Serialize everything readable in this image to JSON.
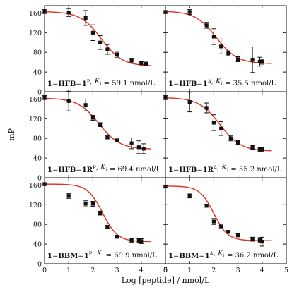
{
  "chart_data": {
    "type": "scatter",
    "xlabel": "Log [peptide] / nmol/L",
    "ylabel": "mP",
    "xlim": [
      0,
      5
    ],
    "ylim": [
      0,
      175
    ],
    "x_ticks": [
      "0",
      "1",
      "2",
      "3",
      "4",
      "5"
    ],
    "y_ticks": [
      "0",
      "40",
      "80",
      "120",
      "160"
    ],
    "layout": "3 rows x 2 columns, shared axes",
    "fit_color": "#e0301e",
    "point_color": "#111111",
    "panels": [
      {
        "annotation": {
          "prefix": "1=HFB=",
          "bold": "1",
          "sup": "P",
          "ki_label": "K",
          "ki_sub": "i",
          "value": " = 59.1 nmol/L"
        },
        "fit": {
          "top": 163,
          "bottom": 52,
          "ec50": 2.35,
          "slope": 1.0
        },
        "points": [
          {
            "x": 0.0,
            "y": 163,
            "err": 4
          },
          {
            "x": 1.0,
            "y": 161,
            "err": 8
          },
          {
            "x": 1.7,
            "y": 150,
            "err": 15
          },
          {
            "x": 2.0,
            "y": 120,
            "err": 16
          },
          {
            "x": 2.3,
            "y": 100,
            "err": 14
          },
          {
            "x": 2.6,
            "y": 86,
            "err": 10
          },
          {
            "x": 3.0,
            "y": 76,
            "err": 6
          },
          {
            "x": 3.6,
            "y": 63,
            "err": 5
          },
          {
            "x": 4.0,
            "y": 58,
            "err": 3
          },
          {
            "x": 4.2,
            "y": 57,
            "err": 3
          }
        ]
      },
      {
        "annotation": {
          "prefix": "1=HFB=",
          "bold": "1",
          "sup": "A",
          "ki_label": "K",
          "ki_sub": "i",
          "value": " = 35.5 nmol/L"
        },
        "fit": {
          "top": 164,
          "bottom": 57,
          "ec50": 2.1,
          "slope": 1.0
        },
        "points": [
          {
            "x": 0.0,
            "y": 162,
            "err": 3
          },
          {
            "x": 1.0,
            "y": 162,
            "err": 5
          },
          {
            "x": 1.7,
            "y": 135,
            "err": 6
          },
          {
            "x": 2.0,
            "y": 112,
            "err": 16
          },
          {
            "x": 2.3,
            "y": 92,
            "err": 15
          },
          {
            "x": 2.6,
            "y": 78,
            "err": 5
          },
          {
            "x": 3.0,
            "y": 66,
            "err": 5
          },
          {
            "x": 3.6,
            "y": 65,
            "err": 26
          },
          {
            "x": 3.9,
            "y": 61,
            "err": 9
          },
          {
            "x": 4.0,
            "y": 61,
            "err": 5
          }
        ]
      },
      {
        "annotation": {
          "prefix": "1=HFB=",
          "bold": "1R",
          "sup": "P",
          "ki_label": "K",
          "ki_sub": "i",
          "value": " = 69.4 nmol/L"
        },
        "fit": {
          "top": 162,
          "bottom": 58,
          "ec50": 2.25,
          "slope": 1.0
        },
        "points": [
          {
            "x": 0.0,
            "y": 163,
            "err": 4
          },
          {
            "x": 1.0,
            "y": 156,
            "err": 20
          },
          {
            "x": 1.7,
            "y": 148,
            "err": 12
          },
          {
            "x": 2.0,
            "y": 122,
            "err": 5
          },
          {
            "x": 2.3,
            "y": 108,
            "err": 4
          },
          {
            "x": 2.6,
            "y": 82,
            "err": 3
          },
          {
            "x": 3.0,
            "y": 76,
            "err": 3
          },
          {
            "x": 3.6,
            "y": 70,
            "err": 11
          },
          {
            "x": 3.9,
            "y": 62,
            "err": 13
          },
          {
            "x": 4.1,
            "y": 59,
            "err": 10
          }
        ]
      },
      {
        "annotation": {
          "prefix": "1=HFB=",
          "bold": "1R",
          "sup": "A",
          "ki_label": "K",
          "ki_sub": "i",
          "value": " = 55.2 nmol/L"
        },
        "fit": {
          "top": 163,
          "bottom": 54,
          "ec50": 2.25,
          "slope": 1.0
        },
        "points": [
          {
            "x": 0.0,
            "y": 163,
            "err": 4
          },
          {
            "x": 1.0,
            "y": 154,
            "err": 20
          },
          {
            "x": 1.7,
            "y": 142,
            "err": 10
          },
          {
            "x": 2.0,
            "y": 112,
            "err": 16
          },
          {
            "x": 2.3,
            "y": 100,
            "err": 14
          },
          {
            "x": 2.7,
            "y": 80,
            "err": 5
          },
          {
            "x": 3.0,
            "y": 72,
            "err": 4
          },
          {
            "x": 3.6,
            "y": 62,
            "err": 4
          },
          {
            "x": 3.9,
            "y": 58,
            "err": 4
          },
          {
            "x": 4.0,
            "y": 58,
            "err": 4
          }
        ]
      },
      {
        "annotation": {
          "prefix": "1=BBM=",
          "bold": "1",
          "sup": "P",
          "ki_label": "K",
          "ki_sub": "i",
          "value": " = 69.9 nmol/L"
        },
        "fit": {
          "top": 162,
          "bottom": 45,
          "ec50": 2.4,
          "slope": 1.4
        },
        "points": [
          {
            "x": 0.0,
            "y": 162,
            "err": 3
          },
          {
            "x": 1.0,
            "y": 138,
            "err": 5
          },
          {
            "x": 1.7,
            "y": 122,
            "err": 6
          },
          {
            "x": 2.0,
            "y": 122,
            "err": 5
          },
          {
            "x": 2.3,
            "y": 103,
            "err": 4
          },
          {
            "x": 2.6,
            "y": 75,
            "err": 3
          },
          {
            "x": 3.0,
            "y": 55,
            "err": 3
          },
          {
            "x": 3.6,
            "y": 48,
            "err": 4
          },
          {
            "x": 3.9,
            "y": 47,
            "err": 4
          },
          {
            "x": 4.0,
            "y": 46,
            "err": 5
          }
        ]
      },
      {
        "annotation": {
          "prefix": "1=BBM=",
          "bold": "1",
          "sup": "A",
          "ki_label": "K",
          "ki_sub": "i",
          "value": " = 36.2 nmol/L"
        },
        "fit": {
          "top": 158,
          "bottom": 47,
          "ec50": 2.0,
          "slope": 1.5
        },
        "points": [
          {
            "x": 0.0,
            "y": 157,
            "err": 2
          },
          {
            "x": 1.0,
            "y": 138,
            "err": 4
          },
          {
            "x": 1.7,
            "y": 118,
            "err": 3
          },
          {
            "x": 2.0,
            "y": 86,
            "err": 6
          },
          {
            "x": 2.3,
            "y": 76,
            "err": 3
          },
          {
            "x": 2.6,
            "y": 65,
            "err": 3
          },
          {
            "x": 3.0,
            "y": 58,
            "err": 3
          },
          {
            "x": 3.6,
            "y": 50,
            "err": 4
          },
          {
            "x": 3.9,
            "y": 48,
            "err": 5
          },
          {
            "x": 4.0,
            "y": 45,
            "err": 9
          }
        ]
      }
    ]
  }
}
